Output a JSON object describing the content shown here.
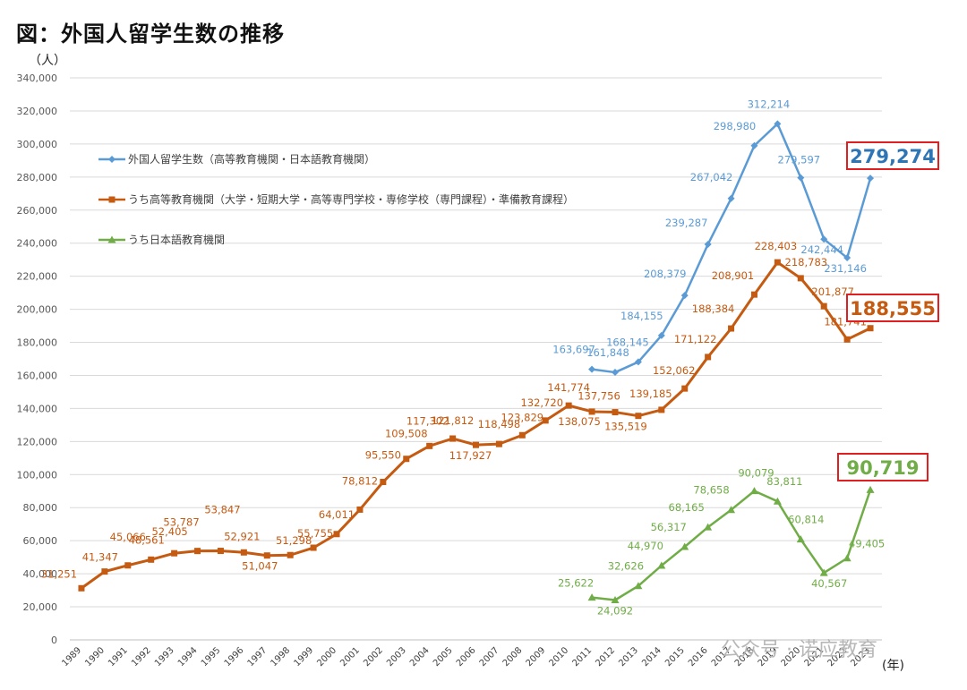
{
  "title": "図：外国人留学生数の推移",
  "chart_data": {
    "type": "line",
    "ylabel": "（人）",
    "xlabel": "(年)",
    "ylim": [
      0,
      340000
    ],
    "ytick_step": 20000,
    "y_ticks": [
      "0",
      "20,000",
      "40,000",
      "60,000",
      "80,000",
      "100,000",
      "120,000",
      "140,000",
      "160,000",
      "180,000",
      "200,000",
      "220,000",
      "240,000",
      "260,000",
      "280,000",
      "300,000",
      "320,000",
      "340,000"
    ],
    "categories": [
      "1989",
      "1990",
      "1991",
      "1992",
      "1993",
      "1994",
      "1995",
      "1996",
      "1997",
      "1998",
      "1999",
      "2000",
      "2001",
      "2002",
      "2003",
      "2004",
      "2005",
      "2006",
      "2007",
      "2008",
      "2009",
      "2010",
      "2011",
      "2012",
      "2013",
      "2014",
      "2015",
      "2016",
      "2017",
      "2018",
      "2019",
      "2020",
      "2021",
      "2022",
      "2023"
    ],
    "grid": "horizontal",
    "legend_position": "top-left",
    "series": [
      {
        "name": "外国人留学生数（高等教育機関・日本語教育機関）",
        "color": "#5b9bd5",
        "marker": "diamond",
        "values": [
          null,
          null,
          null,
          null,
          null,
          null,
          null,
          null,
          null,
          null,
          null,
          null,
          null,
          null,
          null,
          null,
          null,
          null,
          null,
          null,
          null,
          null,
          163697,
          161848,
          168145,
          184155,
          208379,
          239287,
          267042,
          298980,
          312214,
          279597,
          242444,
          231146,
          279274
        ],
        "labels": [
          "",
          "",
          "",
          "",
          "",
          "",
          "",
          "",
          "",
          "",
          "",
          "",
          "",
          "",
          "",
          "",
          "",
          "",
          "",
          "",
          "",
          "",
          "163,697",
          "161,848",
          "168,145",
          "184,155",
          "208,379",
          "239,287",
          "267,042",
          "298,980",
          "312,214",
          "279,597",
          "242,444",
          "231,146",
          "279,274"
        ]
      },
      {
        "name": "うち高等教育機関（大学・短期大学・高等専門学校・専修学校（専門課程）・準備教育課程）",
        "color": "#c55a11",
        "marker": "square",
        "values": [
          31251,
          41347,
          45066,
          48561,
          52405,
          53787,
          53847,
          52921,
          51047,
          51298,
          55755,
          64011,
          78812,
          95550,
          109508,
          117302,
          121812,
          117927,
          118498,
          123829,
          132720,
          141774,
          138075,
          137756,
          135519,
          139185,
          152062,
          171122,
          188384,
          208901,
          228403,
          218783,
          201877,
          181741,
          188555
        ],
        "labels": [
          "31,251",
          "41,347",
          "45,066",
          "48,561",
          "52,405",
          "53,787",
          "53,847",
          "52,921",
          "51,047",
          "51,298",
          "55,755",
          "64,011",
          "78,812",
          "95,550",
          "109,508",
          "117,302",
          "121,812",
          "117,927",
          "118,498",
          "123,829",
          "132,720",
          "141,774",
          "138,075",
          "137,756",
          "135,519",
          "139,185",
          "152,062",
          "171,122",
          "188,384",
          "208,901",
          "228,403",
          "218,783",
          "201,877",
          "181,741",
          "188,555"
        ]
      },
      {
        "name": "うち日本語教育機関",
        "color": "#70ad47",
        "marker": "triangle",
        "values": [
          null,
          null,
          null,
          null,
          null,
          null,
          null,
          null,
          null,
          null,
          null,
          null,
          null,
          null,
          null,
          null,
          null,
          null,
          null,
          null,
          null,
          null,
          25622,
          24092,
          32626,
          44970,
          56317,
          68165,
          78658,
          90079,
          83811,
          60814,
          40567,
          49405,
          90719
        ],
        "labels": [
          "",
          "",
          "",
          "",
          "",
          "",
          "",
          "",
          "",
          "",
          "",
          "",
          "",
          "",
          "",
          "",
          "",
          "",
          "",
          "",
          "",
          "",
          "25,622",
          "24,092",
          "32,626",
          "44,970",
          "56,317",
          "68,165",
          "78,658",
          "90,079",
          "83,811",
          "60,814",
          "40,567",
          "49,405",
          "90,719"
        ]
      }
    ],
    "highlight_box_color": "#e02020"
  },
  "watermark": "公众号 · 诺应教育"
}
